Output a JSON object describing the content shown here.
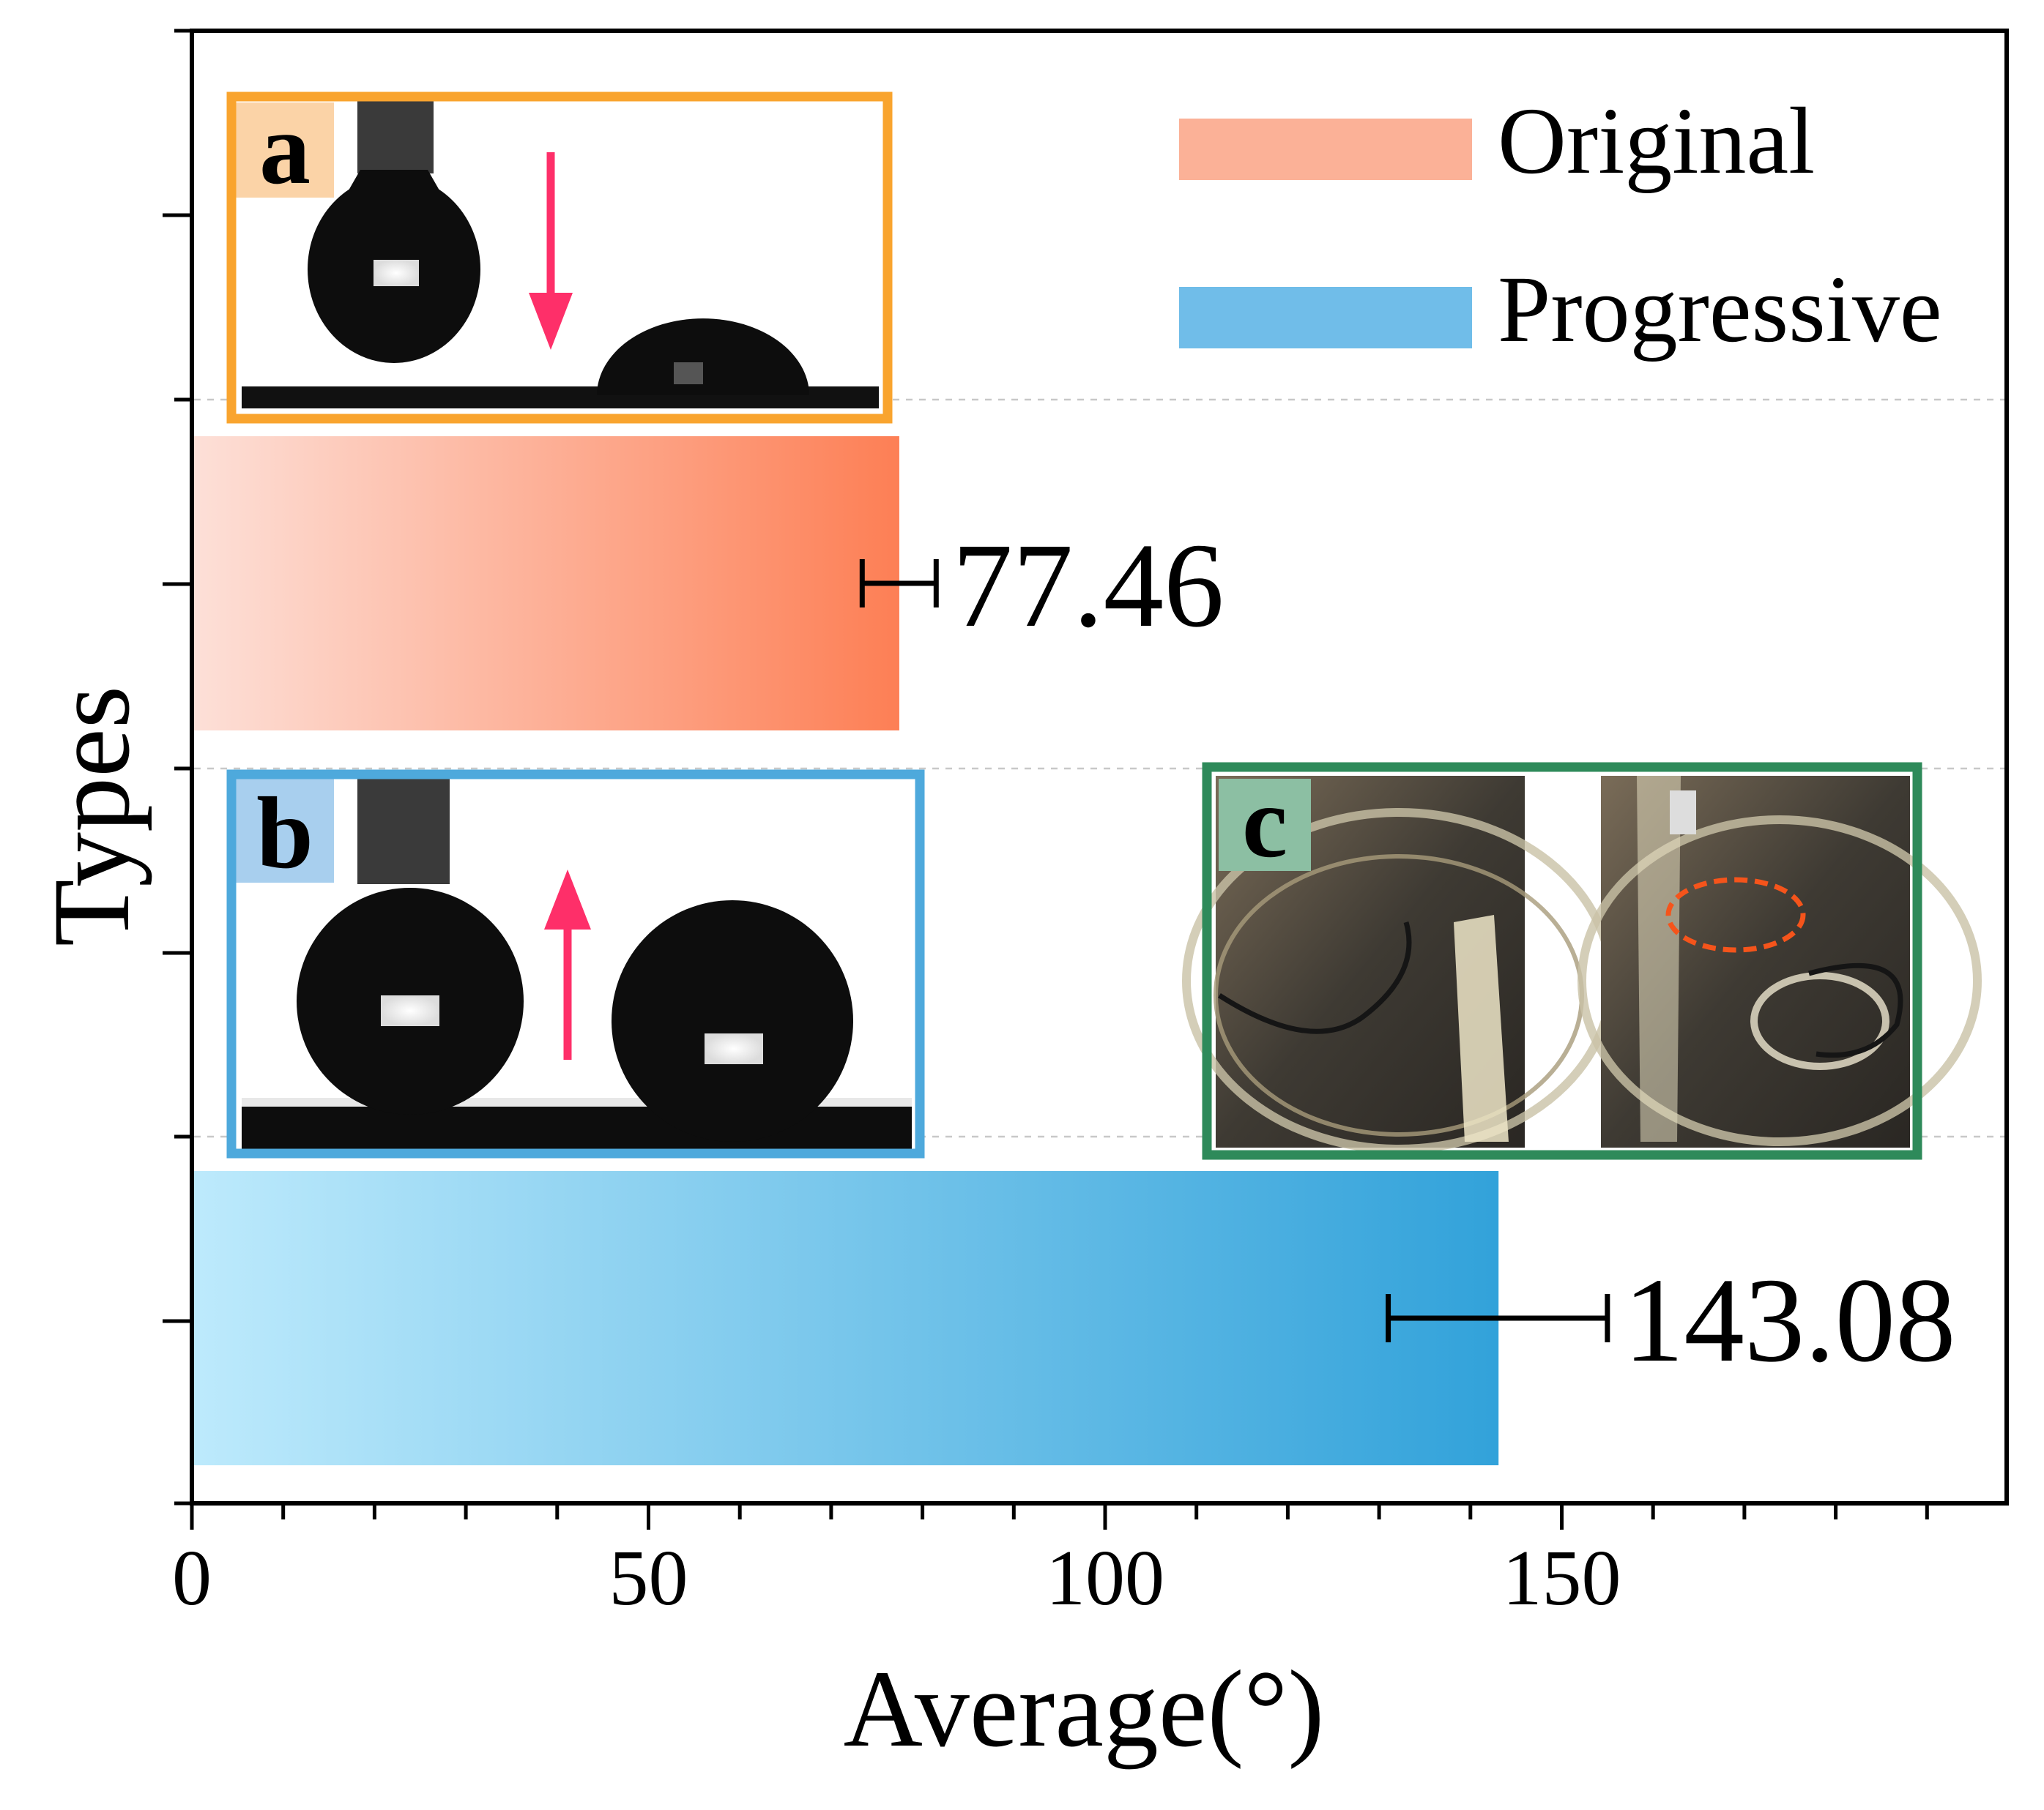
{
  "chart_data": {
    "type": "bar",
    "orientation": "horizontal",
    "title": "",
    "xlabel": "Average(°)",
    "ylabel": "Types",
    "xlim": [
      0,
      200
    ],
    "xticks": [
      "0",
      "50",
      "100",
      "150"
    ],
    "categories": [
      "Original",
      "Progressive"
    ],
    "values": [
      77.46,
      143.08
    ],
    "errors": [
      [
        73.4,
        81.5
      ],
      [
        131.0,
        155.0
      ]
    ],
    "value_labels": [
      "77.46",
      "143.08"
    ],
    "legend": {
      "position": "top-right",
      "entries": [
        "Original",
        "Progressive"
      ]
    },
    "colors": {
      "original_light": "#fde0d8",
      "original_dark": "#fd7f55",
      "progressive_light": "#bdeafc",
      "progressive_dark": "#32a2da",
      "legend_original": "#fbb197",
      "legend_progressive": "#70bde9",
      "frame_a": "#f9a42e",
      "frame_b": "#4ea9dc",
      "frame_c": "#2e8a5a",
      "arrow": "#fe2f69"
    }
  },
  "insets": {
    "a": {
      "label": "a",
      "arrow": "down-arrow"
    },
    "b": {
      "label": "b",
      "arrow": "up-arrow"
    },
    "c": {
      "label": "c"
    }
  }
}
